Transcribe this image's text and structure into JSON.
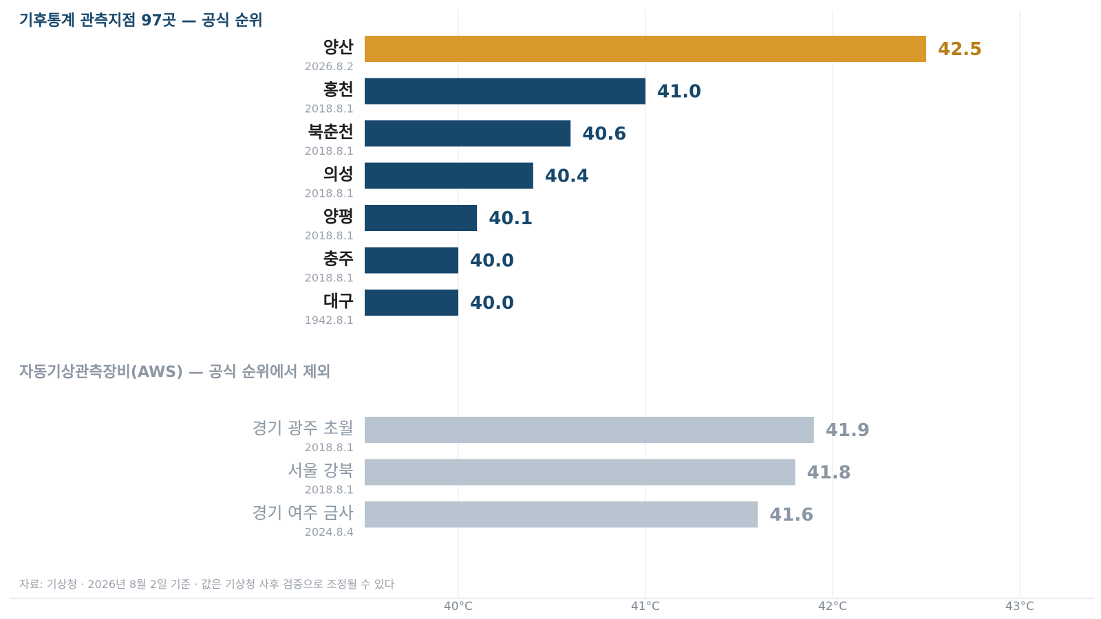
{
  "chart_data": {
    "type": "bar",
    "orientation": "horizontal",
    "x_unit": "°C",
    "xlim": [
      39.5,
      43.35
    ],
    "x_ticks": [
      {
        "value": 40,
        "label": "40°C"
      },
      {
        "value": 41,
        "label": "41°C"
      },
      {
        "value": 42,
        "label": "42°C"
      },
      {
        "value": 43,
        "label": "43°C"
      }
    ],
    "grid": true,
    "colors": {
      "highlight": "#d9982a",
      "highlight_text": "#b87d14",
      "official": "#17476b",
      "aws": "#b8c4d0",
      "aws_text": "#8a96a3",
      "title_official": "#17476b",
      "title_aws": "#8d97a3"
    },
    "groups": [
      {
        "title": "기후통계 관측지점 97곳 — 공식 순위",
        "kind": "official",
        "rows": [
          {
            "name": "양산",
            "date": "2026.8.2",
            "value": 42.5,
            "label": "42.5",
            "highlight": true
          },
          {
            "name": "홍천",
            "date": "2018.8.1",
            "value": 41.0,
            "label": "41.0"
          },
          {
            "name": "북춘천",
            "date": "2018.8.1",
            "value": 40.6,
            "label": "40.6"
          },
          {
            "name": "의성",
            "date": "2018.8.1",
            "value": 40.4,
            "label": "40.4"
          },
          {
            "name": "양평",
            "date": "2018.8.1",
            "value": 40.1,
            "label": "40.1"
          },
          {
            "name": "충주",
            "date": "2018.8.1",
            "value": 40.0,
            "label": "40.0"
          },
          {
            "name": "대구",
            "date": "1942.8.1",
            "value": 40.0,
            "label": "40.0"
          }
        ]
      },
      {
        "title": "자동기상관측장비(AWS) — 공식 순위에서 제외",
        "kind": "aws",
        "rows": [
          {
            "name": "경기 광주 초월",
            "date": "2018.8.1",
            "value": 41.9,
            "label": "41.9"
          },
          {
            "name": "서울 강북",
            "date": "2018.8.1",
            "value": 41.8,
            "label": "41.8"
          },
          {
            "name": "경기 여주 금사",
            "date": "2024.8.4",
            "value": 41.6,
            "label": "41.6"
          }
        ]
      }
    ],
    "source": "자료: 기상청 · 2026년 8월 2일 기준 · 값은 기상청 사후 검증으로 조정될 수 있다"
  }
}
